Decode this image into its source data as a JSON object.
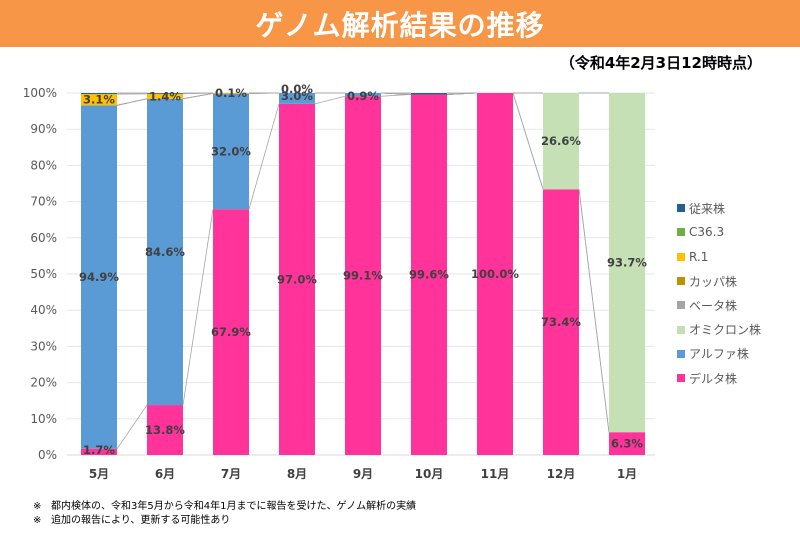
{
  "header": {
    "title": "ゲノム解析結果の推移",
    "as_of": "（令和4年2月3日12時時点）"
  },
  "chart_data": {
    "type": "bar",
    "stacked": true,
    "normalized": true,
    "title": "ゲノム解析結果の推移",
    "xlabel": "",
    "ylabel": "",
    "ylim": [
      0,
      100
    ],
    "yticks": [
      "0%",
      "10%",
      "20%",
      "30%",
      "40%",
      "50%",
      "60%",
      "70%",
      "80%",
      "90%",
      "100%"
    ],
    "grid": true,
    "legend_position": "right",
    "categories": [
      "5月",
      "6月",
      "7月",
      "8月",
      "9月",
      "10月",
      "11月",
      "12月",
      "1月"
    ],
    "series": [
      {
        "name": "デルタ株",
        "color": "#ff3399",
        "values": [
          1.7,
          13.8,
          67.9,
          97.0,
          99.1,
          99.6,
          100.0,
          73.4,
          6.3
        ],
        "labels": [
          "1.7%",
          "13.8%",
          "67.9%",
          "97.0%",
          "99.1%",
          "99.6%",
          "100.0%",
          "73.4%",
          "6.3%"
        ]
      },
      {
        "name": "アルファ株",
        "color": "#5b9bd5",
        "values": [
          94.9,
          84.6,
          32.0,
          3.0,
          0.9,
          0,
          0,
          0,
          0
        ],
        "labels": [
          "94.9%",
          "84.6%",
          "32.0%",
          "3.0%",
          "0.9%",
          "",
          "",
          "",
          ""
        ]
      },
      {
        "name": "オミクロン株",
        "color": "#c5e0b4",
        "values": [
          0,
          0,
          0,
          0,
          0,
          0,
          0,
          26.6,
          93.7
        ],
        "labels": [
          "",
          "",
          "",
          "",
          "",
          "",
          "",
          "26.6%",
          "93.7%"
        ]
      },
      {
        "name": "ベータ株",
        "color": "#a5a5a5",
        "values": [
          0,
          0,
          0,
          0,
          0,
          0,
          0,
          0,
          0
        ],
        "labels": [
          "",
          "",
          "",
          "",
          "",
          "",
          "",
          "",
          ""
        ]
      },
      {
        "name": "カッパ株",
        "color": "#bf9000",
        "values": [
          0,
          0,
          0,
          0,
          0,
          0,
          0,
          0,
          0
        ],
        "labels": [
          "",
          "",
          "",
          "",
          "",
          "",
          "",
          "",
          ""
        ]
      },
      {
        "name": "R.1",
        "color": "#ffc000",
        "values": [
          3.1,
          1.4,
          0.1,
          0.0,
          0,
          0,
          0,
          0,
          0
        ],
        "labels": [
          "3.1%",
          "1.4%",
          "0.1%",
          "0.0%",
          "",
          "",
          "",
          "",
          ""
        ]
      },
      {
        "name": "C36.3",
        "color": "#70ad47",
        "values": [
          0,
          0,
          0,
          0,
          0,
          0,
          0,
          0,
          0
        ],
        "labels": [
          "",
          "",
          "",
          "",
          "",
          "",
          "",
          "",
          ""
        ]
      },
      {
        "name": "従来株",
        "color": "#255e91",
        "values": [
          0.3,
          0.2,
          0,
          0,
          0,
          0.4,
          0,
          0,
          0
        ],
        "labels": [
          "",
          "",
          "",
          "",
          "",
          "",
          "",
          "",
          ""
        ]
      }
    ],
    "legend": [
      "従来株",
      "C36.3",
      "R.1",
      "カッパ株",
      "ベータ株",
      "オミクロン株",
      "アルファ株",
      "デルタ株"
    ]
  },
  "notes": [
    {
      "mark": "※",
      "text": "都内検体の、令和3年5月から令和4年1月までに報告を受けた、ゲノム解析の実績"
    },
    {
      "mark": "※",
      "text": "追加の報告により、更新する可能性あり"
    }
  ]
}
